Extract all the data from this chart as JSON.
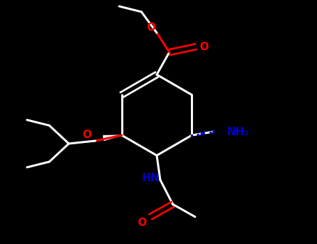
{
  "bg_color": "#000000",
  "bond_color": "#ffffff",
  "oxygen_color": "#ff0000",
  "nitrogen_color": "#0000cd",
  "lw": 2.2,
  "figsize": [
    4.55,
    3.5
  ],
  "dpi": 100,
  "xlim": [
    0,
    455
  ],
  "ylim": [
    0,
    350
  ]
}
